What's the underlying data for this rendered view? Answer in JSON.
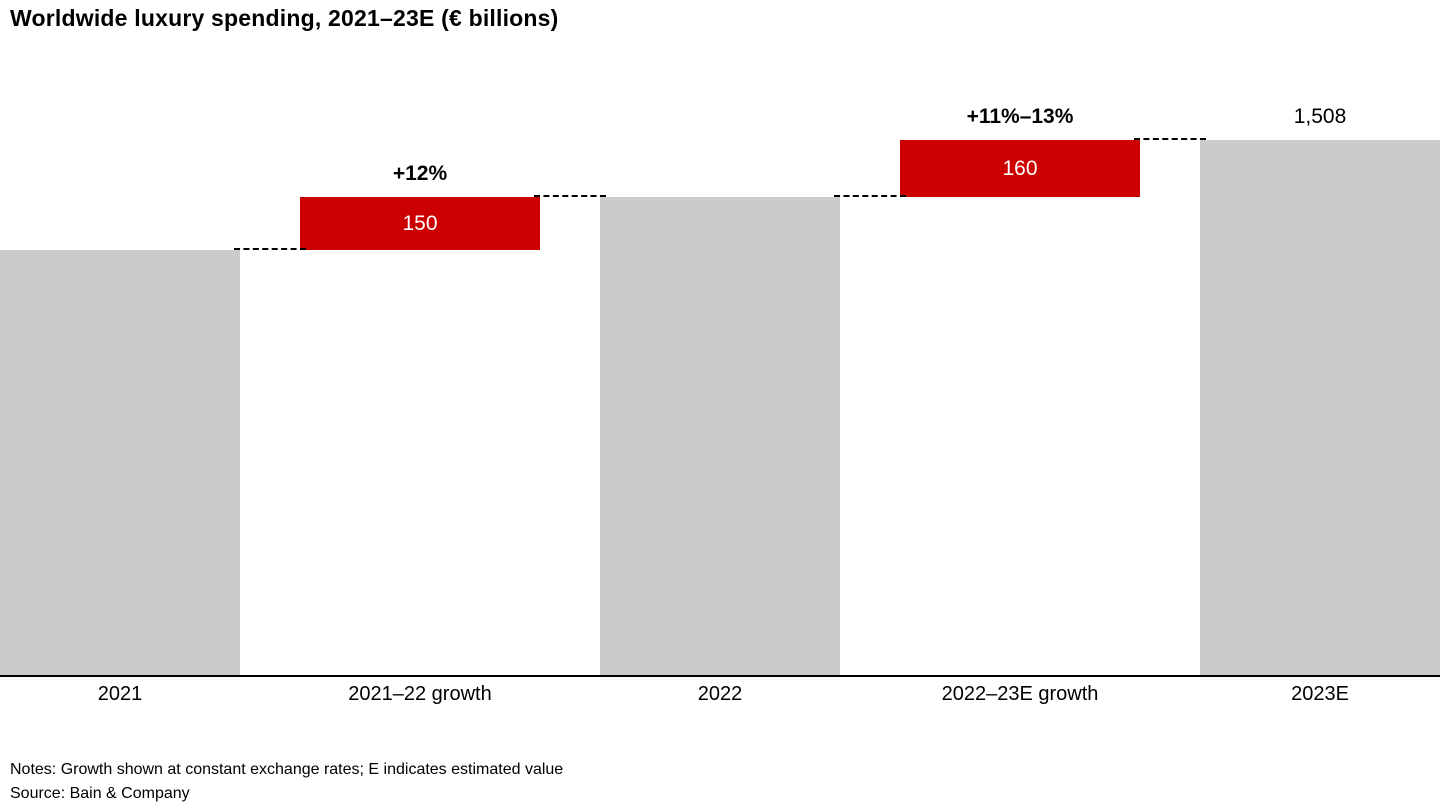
{
  "chart_data": {
    "type": "bar",
    "subtype": "waterfall",
    "title": "Worldwide luxury spending, 2021–23E (€ billions)",
    "unit": "€ billions",
    "categories": [
      "2021",
      "2021–22 growth",
      "2022",
      "2022–23E growth",
      "2023E"
    ],
    "bars": [
      {
        "category": "2021",
        "kind": "total",
        "start": 0,
        "end": 1198
      },
      {
        "category": "2021–22 growth",
        "kind": "delta",
        "start": 1198,
        "end": 1348,
        "inside_label": "150",
        "annotation": "+12%"
      },
      {
        "category": "2022",
        "kind": "total",
        "start": 0,
        "end": 1348
      },
      {
        "category": "2022–23E growth",
        "kind": "delta",
        "start": 1348,
        "end": 1508,
        "inside_label": "160",
        "annotation": "+11%–13%"
      },
      {
        "category": "2023E",
        "kind": "total",
        "start": 0,
        "end": 1508,
        "annotation": "1,508"
      }
    ],
    "ylim": [
      0,
      1508
    ],
    "grid": false,
    "legend": "none",
    "colors": {
      "total": "#cbcbcb",
      "delta": "#cc0000",
      "inside_label": "#ffffff",
      "annotation": "#000000",
      "axis": "#000000"
    }
  },
  "footer": {
    "notes": "Notes: Growth shown at constant exchange rates; E indicates estimated value",
    "source": "Source: Bain & Company"
  }
}
